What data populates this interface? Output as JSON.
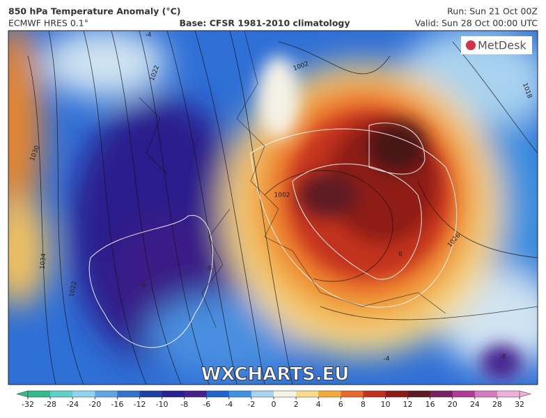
{
  "header": {
    "title": "850 hPa Temperature Anomaly (°C)",
    "model": "ECMWF HRES 0.1°",
    "base": "Base: CFSR 1981-2010 climatology",
    "run": "Run: Sun 21 Oct 00Z",
    "valid": "Valid: Sun 28 Oct 00:00 UTC"
  },
  "logo": "MetDesk",
  "watermark": "WXCHARTS.EU",
  "map": {
    "labels": [
      "-4",
      "1022",
      "1030",
      "1034",
      "1022",
      "1018",
      "1002",
      "1002",
      "1026",
      "8",
      "8",
      "-8",
      "-8",
      "-8",
      "-4"
    ]
  },
  "colorbar": {
    "ticks": [
      -32,
      -28,
      -24,
      -20,
      -16,
      -12,
      -10,
      -8,
      -6,
      -4,
      -2,
      0,
      2,
      4,
      6,
      8,
      10,
      12,
      16,
      20,
      24,
      28,
      32
    ],
    "colors": [
      "#35b98f",
      "#5fd0c8",
      "#8fd4ee",
      "#5fa6e6",
      "#3272d0",
      "#1e3fa8",
      "#2a1f8f",
      "#47208f",
      "#1f63cf",
      "#3e93e0",
      "#a9d2f0",
      "#f5f2e6",
      "#f7dc8a",
      "#f2aa3e",
      "#e8682a",
      "#c3301e",
      "#8f1b18",
      "#5e1a20",
      "#7a2062",
      "#b03a96",
      "#d779bd",
      "#ecb0da"
    ]
  }
}
